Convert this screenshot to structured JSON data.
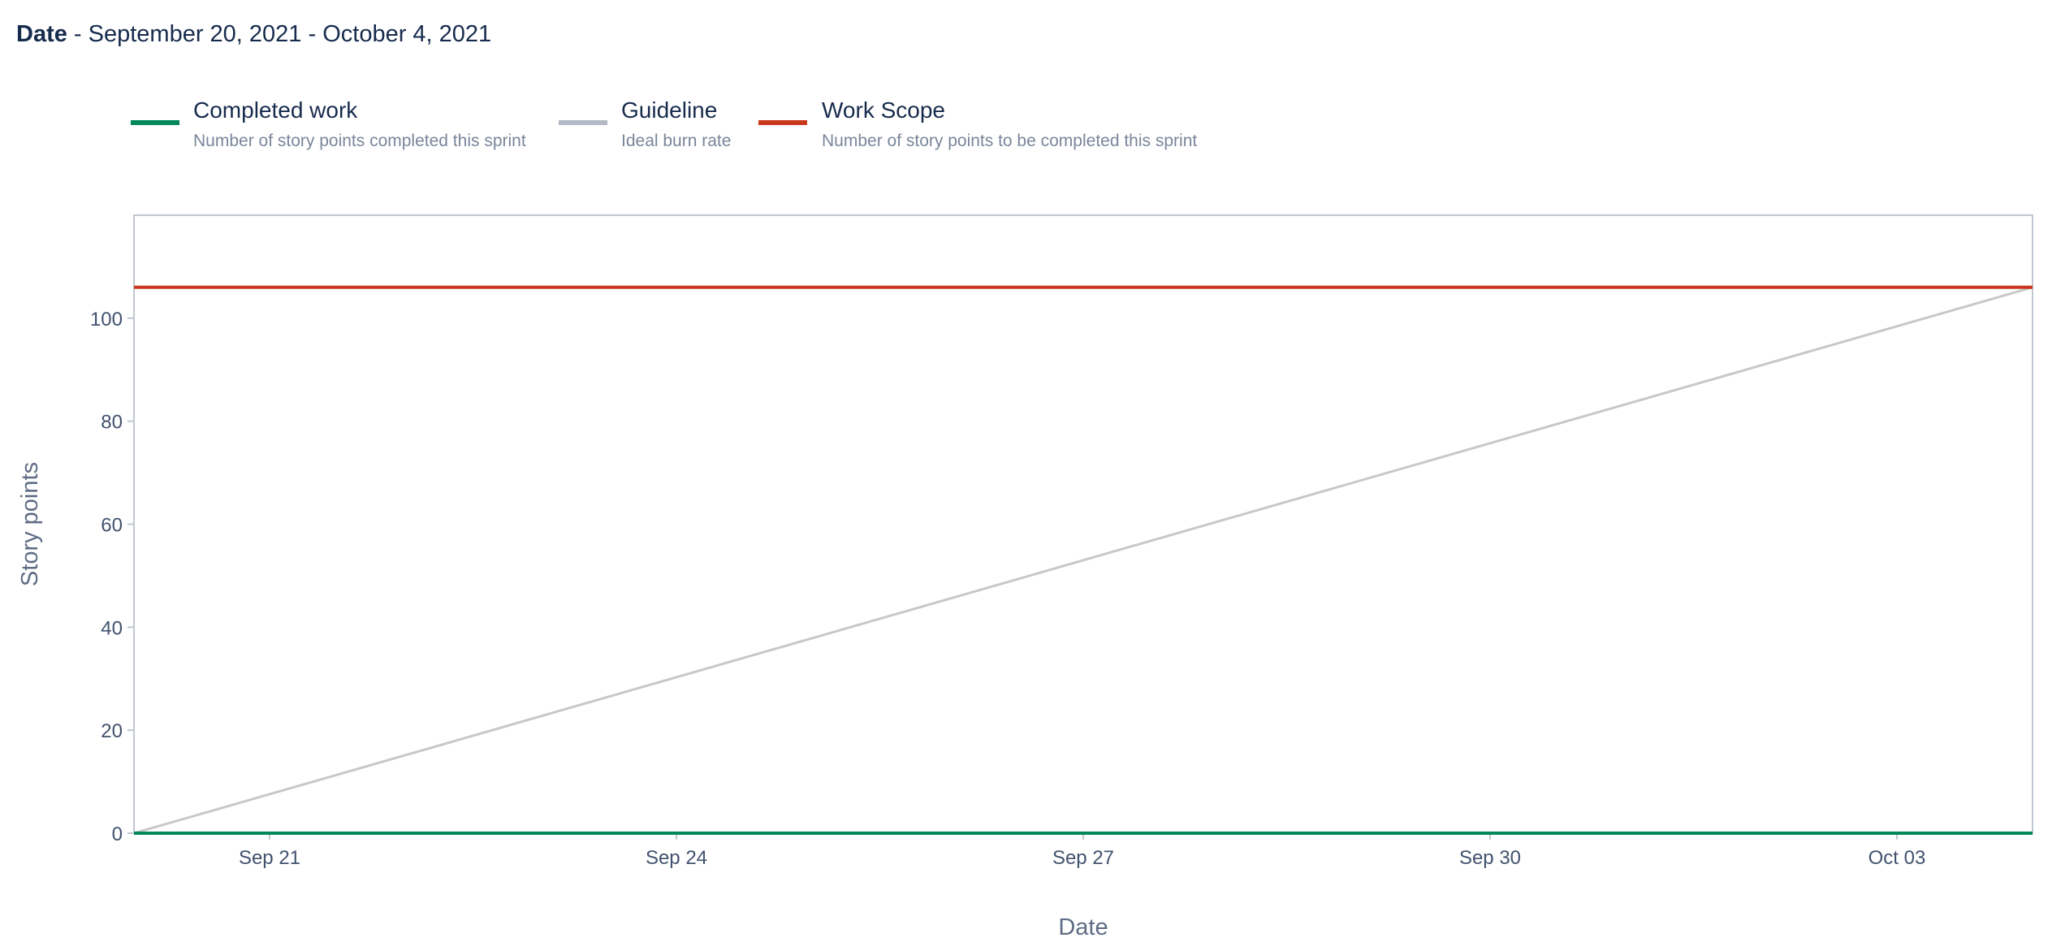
{
  "header": {
    "date_label": "Date",
    "separator": " - ",
    "date_range": "September 20, 2021 - October 4, 2021"
  },
  "legend": [
    {
      "title": "Completed work",
      "description": "Number of story points completed this sprint",
      "color": "#00875a"
    },
    {
      "title": "Guideline",
      "description": "Ideal burn rate",
      "color": "#b3bac5"
    },
    {
      "title": "Work Scope",
      "description": "Number of story points to be completed this sprint",
      "color": "#c9371c"
    }
  ],
  "chart_data": {
    "type": "line",
    "xlabel": "Date",
    "ylabel": "Story points",
    "x_ticks": [
      "Sep 21",
      "Sep 24",
      "Sep 27",
      "Sep 30",
      "Oct 03"
    ],
    "x_tick_dates": [
      "2021-09-21",
      "2021-09-24",
      "2021-09-27",
      "2021-09-30",
      "2021-10-03"
    ],
    "xlim": [
      "2021-09-20",
      "2021-10-04"
    ],
    "ylim": [
      0,
      120
    ],
    "y_ticks": [
      0,
      20,
      40,
      60,
      80,
      100
    ],
    "grid": false,
    "legend_position": "top-left",
    "series": [
      {
        "name": "Completed work",
        "color": "#00875a",
        "points": [
          {
            "x": "2021-09-20",
            "y": 0
          },
          {
            "x": "2021-10-04",
            "y": 0
          }
        ]
      },
      {
        "name": "Guideline",
        "color": "#c8c8c8",
        "points": [
          {
            "x": "2021-09-20",
            "y": 0
          },
          {
            "x": "2021-10-04",
            "y": 106
          }
        ]
      },
      {
        "name": "Work Scope",
        "color": "#c9371c",
        "points": [
          {
            "x": "2021-09-20",
            "y": 106
          },
          {
            "x": "2021-10-04",
            "y": 106
          }
        ]
      }
    ]
  }
}
